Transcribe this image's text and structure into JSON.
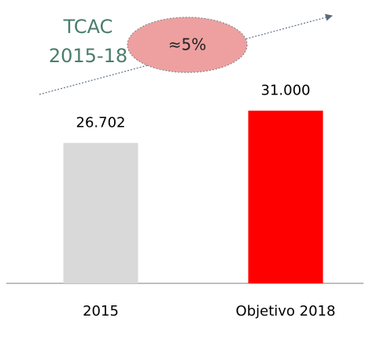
{
  "chart_data": {
    "type": "bar",
    "categories": [
      "2015",
      "Objetivo 2018"
    ],
    "values": [
      26702,
      31000
    ],
    "value_labels": [
      "26.702",
      "31.000"
    ],
    "colors": [
      "#d9d9d9",
      "#ff0000"
    ],
    "ylim": [
      8000,
      34000
    ],
    "annotations": [
      "TCAC",
      "2015-18",
      "≈5%"
    ]
  }
}
